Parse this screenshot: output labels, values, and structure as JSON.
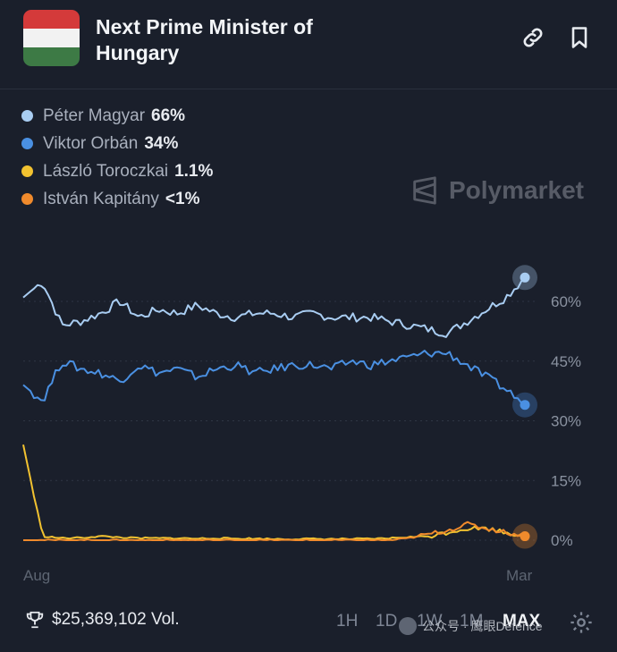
{
  "header": {
    "title": "Next Prime Minister of Hungary",
    "flag_colors": [
      "#d43a3a",
      "#f2f2f2",
      "#3d7a45"
    ]
  },
  "legend": [
    {
      "name": "Péter Magyar",
      "value": "66%",
      "color": "#a9cdf2"
    },
    {
      "name": "Viktor Orbán",
      "value": "34%",
      "color": "#4a90e2"
    },
    {
      "name": "László Toroczkai",
      "value": "1.1%",
      "color": "#f2c230"
    },
    {
      "name": "István Kapitány",
      "value": "<1%",
      "color": "#f08a2c"
    }
  ],
  "watermark": "Polymarket",
  "chart_data": {
    "type": "line",
    "x_start_label": "Aug",
    "x_end_label": "Mar",
    "y_ticks": [
      "60%",
      "45%",
      "30%",
      "15%",
      "0%"
    ],
    "ylim": [
      0,
      70
    ],
    "series": [
      {
        "name": "Péter Magyar",
        "color": "#a9cdf2",
        "values": [
          61,
          65,
          54,
          55,
          57,
          60,
          56,
          58,
          57,
          59,
          57,
          56,
          57,
          57,
          56,
          57,
          56,
          56,
          56,
          55,
          54,
          53,
          52,
          55,
          58,
          61,
          66
        ]
      },
      {
        "name": "Viktor Orbán",
        "color": "#4a90e2",
        "values": [
          39,
          35,
          45,
          43,
          42,
          40,
          44,
          42,
          43,
          41,
          43,
          44,
          42,
          43,
          44,
          44,
          43,
          45,
          44,
          45,
          46,
          47,
          47,
          44,
          41,
          38,
          34
        ]
      },
      {
        "name": "László Toroczkai",
        "color": "#f2c230",
        "values": [
          24,
          1,
          0.5,
          0.6,
          1,
          0.7,
          0.5,
          0.5,
          0.5,
          0.4,
          0.5,
          0.4,
          0.4,
          0.3,
          0.3,
          0.3,
          0.3,
          0.3,
          0.3,
          0.5,
          0.8,
          1,
          2,
          3,
          3,
          2,
          1.1
        ]
      },
      {
        "name": "István Kapitány",
        "color": "#f08a2c",
        "values": [
          0,
          0,
          0,
          0,
          0,
          0,
          0,
          0,
          0,
          0,
          0,
          0,
          0,
          0,
          0,
          0,
          0,
          0,
          0,
          0,
          0.5,
          1.5,
          2.5,
          4,
          3,
          2,
          1
        ]
      }
    ]
  },
  "footer": {
    "volume": "$25,369,102 Vol.",
    "ranges": [
      "1H",
      "1D",
      "1W",
      "1M",
      "MAX"
    ],
    "active_range": "MAX",
    "social_text": "公众号 · 鹰眼Defence"
  }
}
